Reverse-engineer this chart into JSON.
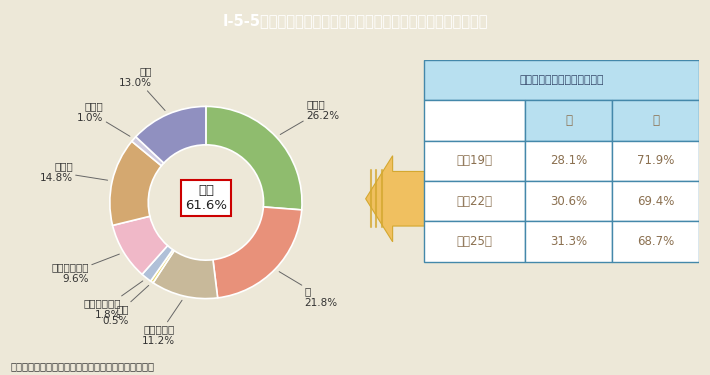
{
  "title": "I-5-5図　要介護者等から見た主な介護者の続柄（平成２５年）",
  "title_bg": "#1ab8cc",
  "title_color": "#ffffff",
  "bg_color": "#ede8d8",
  "slices": [
    {
      "label": "配偶者",
      "value": 26.2,
      "color": "#8fbc6e"
    },
    {
      "label": "子",
      "value": 21.8,
      "color": "#e8917a"
    },
    {
      "label": "子の配偶者",
      "value": 11.2,
      "color": "#c8b99a"
    },
    {
      "label": "父母",
      "value": 0.5,
      "color": "#e8d870"
    },
    {
      "label": "その他の親族",
      "value": 1.8,
      "color": "#b0c0d8"
    },
    {
      "label": "別居の家族等",
      "value": 9.6,
      "color": "#f0b8c8"
    },
    {
      "label": "事業者",
      "value": 14.8,
      "color": "#d4a870"
    },
    {
      "label": "その他",
      "value": 1.0,
      "color": "#d0cce0"
    },
    {
      "label": "不詳",
      "value": 13.0,
      "color": "#9090c0"
    }
  ],
  "donut_label": "同居",
  "donut_value": "61.6%",
  "donut_box_color": "#cc0000",
  "table_title": "同居の主な介護者の男女内訳",
  "table_header_bg": "#b8e0f0",
  "table_rows": [
    [
      "平成19年",
      "28.1%",
      "71.9%"
    ],
    [
      "平成22年",
      "30.6%",
      "69.4%"
    ],
    [
      "平成25年",
      "31.3%",
      "68.7%"
    ]
  ],
  "table_cols": [
    "",
    "男",
    "女"
  ],
  "table_text_color": "#8b7050",
  "table_border_color": "#4488aa",
  "footnote": "（備考）厚生労働省「国民生活基礎調査」より作成。",
  "footnote_color": "#333333",
  "arrow_color": "#f0c060",
  "arrow_stripe_color": "#d4a830"
}
